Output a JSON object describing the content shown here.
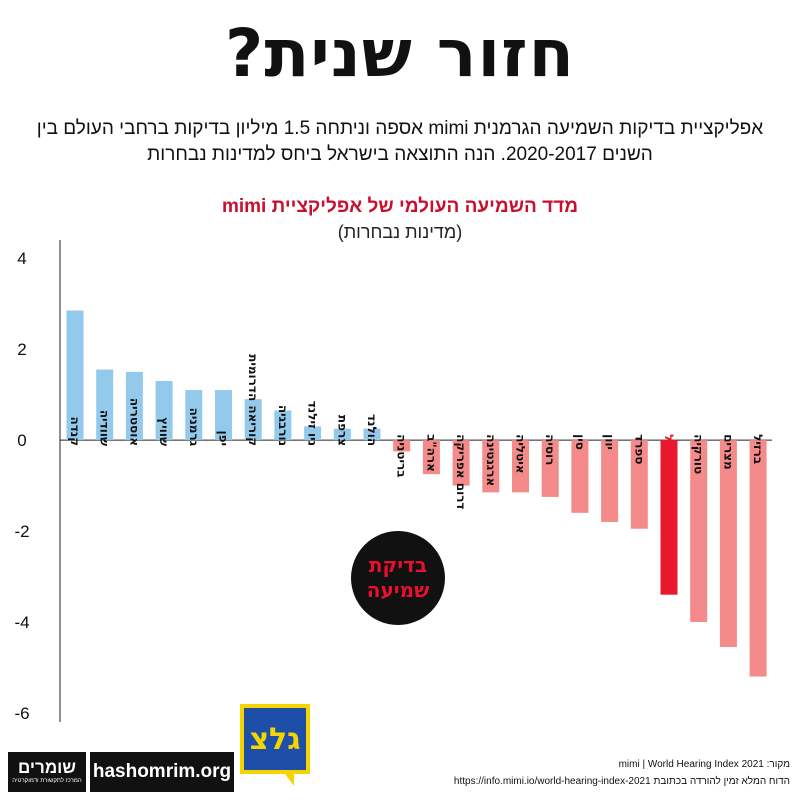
{
  "header": {
    "title": "חזור שנית?",
    "subtitle": "אפליקציית בדיקות השמיעה הגרמנית mimi אספה וניתחה 1.5 מיליון בדיקות ברחבי העולם בין השנים 2020-2017. הנה התוצאה בישראל ביחס למדינות נבחרות"
  },
  "chart_data": {
    "type": "bar",
    "title": "מדד השמיעה העולמי של אפליקציית mimi",
    "subtitle": "(מדינות נבחרות)",
    "categories": [
      "קנדה",
      "שוודיה",
      "אוסטריה",
      "שוויץ",
      "גרמניה",
      "יפן",
      "קוריאה הדרומית",
      "נורבגיה",
      "ניו זילנד",
      "צרפת",
      "הולנד",
      "בריטניה",
      "ארה\"ב",
      "דרום אפריקה",
      "ארגנטינה",
      "איטליה",
      "רוסיה",
      "סין",
      "יוון",
      "ספרד",
      "ישראל",
      "טורקיה",
      "מצרים",
      "ברזיל"
    ],
    "values": [
      2.85,
      1.55,
      1.5,
      1.3,
      1.1,
      1.1,
      0.9,
      0.65,
      0.3,
      0.25,
      0.25,
      -0.25,
      -0.75,
      -1.0,
      -1.15,
      -1.15,
      -1.25,
      -1.6,
      -1.8,
      -1.95,
      -3.4,
      -4.0,
      -4.55,
      -5.2
    ],
    "highlight": "ישראל",
    "ylim": [
      -6.2,
      4.4
    ],
    "yticks": [
      4,
      2,
      0,
      -2,
      -4,
      -6
    ],
    "ytick_labels": [
      "4",
      "2",
      "0",
      "-2",
      "-4",
      "-6"
    ],
    "colors": {
      "positive": "#93c9ea",
      "negative": "#f48a8a",
      "highlight": "#e8192c",
      "highlight_label": "#e8192c",
      "axis": "#222222"
    }
  },
  "badge": {
    "line1": "בדיקת",
    "line2": "שמיעה"
  },
  "logo": {
    "text": "גלצ"
  },
  "footer": {
    "brand": "שומרים",
    "brand_tagline": "המרכז לתקשורת ודמוקרטיה",
    "url": "hashomrim.org",
    "source_line1": "מקור: mimi | World Hearing Index 2021",
    "source_line2": "הדוח המלא זמין להורדה בכתובת https://info.mimi.io/world-hearing-index-2021"
  }
}
